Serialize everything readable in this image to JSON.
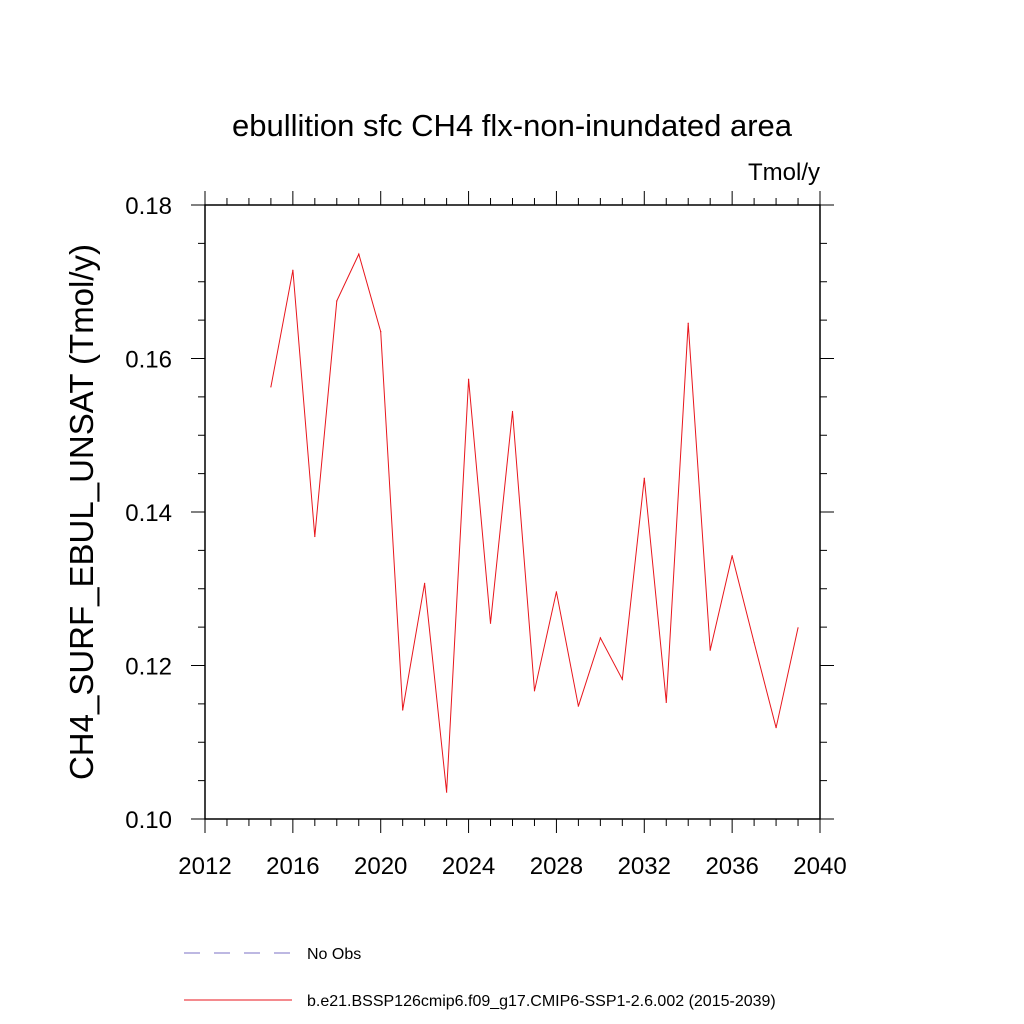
{
  "chart_data": {
    "type": "line",
    "title": "ebullition sfc CH4 flx-non-inundated area",
    "units": "Tmol/y",
    "xlabel": "",
    "ylabel": "CH4_SURF_EBUL_UNSAT  (Tmol/y)",
    "xlim": [
      2012,
      2040
    ],
    "ylim": [
      0.1,
      0.18
    ],
    "xticks": [
      2012,
      2016,
      2020,
      2024,
      2028,
      2032,
      2036,
      2040
    ],
    "xtick_labels": [
      "2012",
      "2016",
      "2020",
      "2024",
      "2028",
      "2032",
      "2036",
      "2040"
    ],
    "yticks": [
      0.1,
      0.12,
      0.14,
      0.16,
      0.18
    ],
    "ytick_labels": [
      "0.10",
      "0.12",
      "0.14",
      "0.16",
      "0.18"
    ],
    "grid": false,
    "legend_position": "bottom",
    "series": [
      {
        "name": "b.e21.BSSP126cmip6.f09_g17.CMIP6-SSP1-2.6.002 (2015-2039)",
        "color": "#e8161c",
        "x": [
          2015,
          2016,
          2017,
          2018,
          2019,
          2020,
          2021,
          2022,
          2023,
          2024,
          2025,
          2026,
          2027,
          2028,
          2029,
          2030,
          2031,
          2032,
          2033,
          2034,
          2035,
          2036,
          2037,
          2038,
          2039
        ],
        "values": [
          0.1563,
          0.1715,
          0.1368,
          0.1675,
          0.1736,
          0.1635,
          0.1142,
          0.1307,
          0.1035,
          0.1573,
          0.1255,
          0.1531,
          0.1167,
          0.1296,
          0.1147,
          0.1236,
          0.1182,
          0.1444,
          0.1152,
          0.1646,
          0.122,
          0.1343,
          0.123,
          0.1119,
          0.1249
        ]
      }
    ],
    "legend": [
      {
        "label": "No Obs",
        "style": "dashed",
        "color": "#7b72c4"
      },
      {
        "label": "b.e21.BSSP126cmip6.f09_g17.CMIP6-SSP1-2.6.002 (2015-2039)",
        "style": "solid",
        "color": "#e8161c"
      }
    ]
  }
}
